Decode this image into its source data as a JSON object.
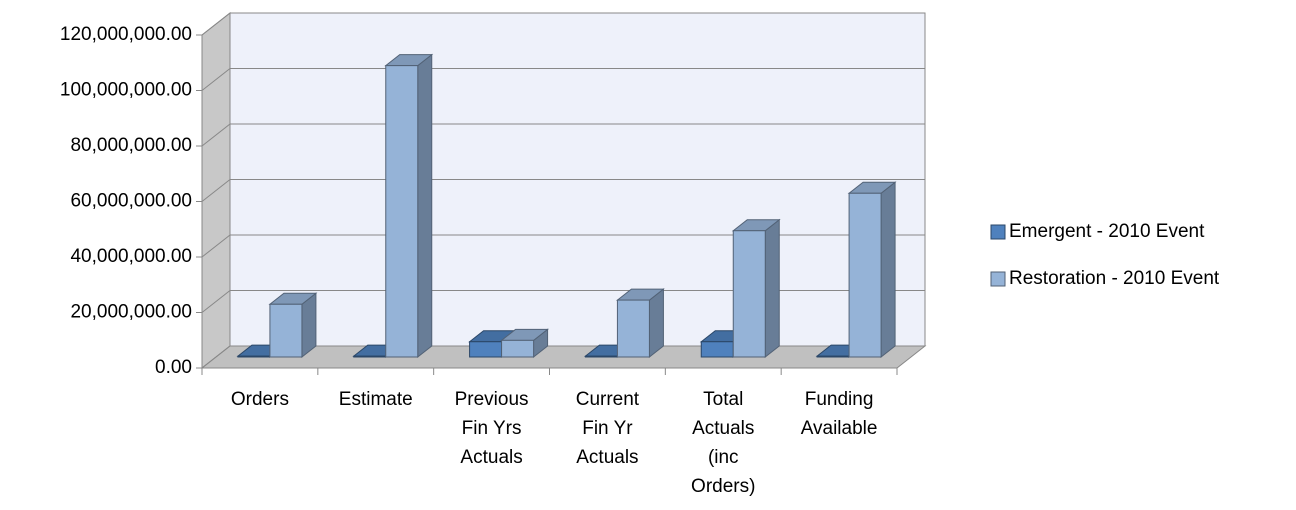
{
  "chart_data": {
    "type": "bar3d",
    "categories": [
      "Orders",
      "Estimate",
      "Previous Fin Yrs Actuals",
      "Current Fin Yr Actuals",
      "Total Actuals (inc Orders)",
      "Funding Available"
    ],
    "series": [
      {
        "name": "Emergent - 2010 Event",
        "color": "#4f81bd",
        "values": [
          300000,
          300000,
          5500000,
          300000,
          5500000,
          300000
        ]
      },
      {
        "name": "Restoration - 2010 Event",
        "color": "#95b3d7",
        "values": [
          19000000,
          105000000,
          6000000,
          20500000,
          45500000,
          59000000
        ]
      }
    ],
    "ylim": [
      0,
      120000000
    ],
    "yticks": [
      {
        "value": 0,
        "label": "0.00"
      },
      {
        "value": 20000000,
        "label": "20,000,000.00"
      },
      {
        "value": 40000000,
        "label": "40,000,000.00"
      },
      {
        "value": 60000000,
        "label": "60,000,000.00"
      },
      {
        "value": 80000000,
        "label": "80,000,000.00"
      },
      {
        "value": 100000000,
        "label": "100,000,000.00"
      },
      {
        "value": 120000000,
        "label": "120,000,000.00"
      }
    ],
    "grid": true,
    "legend": "right"
  }
}
